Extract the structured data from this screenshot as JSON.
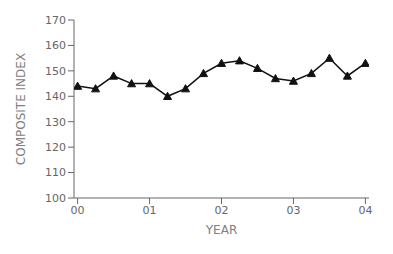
{
  "chart_data": {
    "type": "line",
    "x": [
      0.0,
      0.25,
      0.5,
      0.75,
      1.0,
      1.25,
      1.5,
      1.75,
      2.0,
      2.25,
      2.5,
      2.75,
      3.0,
      3.25,
      3.5,
      3.75,
      4.0
    ],
    "values": [
      144,
      143,
      148,
      145,
      145,
      140,
      143,
      149,
      153,
      154,
      151,
      147,
      146,
      149,
      155,
      148,
      153
    ],
    "xlim": [
      -0.05,
      4.05
    ],
    "ylim": [
      100,
      170
    ],
    "xticks": [
      {
        "value": 0,
        "label": "00"
      },
      {
        "value": 1.0,
        "label": "01"
      },
      {
        "value": 2.0,
        "label": "02"
      },
      {
        "value": 3.0,
        "label": "03"
      },
      {
        "value": 4.0,
        "label": "04"
      }
    ],
    "yticks": [
      100,
      110,
      120,
      130,
      140,
      150,
      160,
      170
    ],
    "xlabel": "YEAR",
    "ylabel": "COMPOSITE INDEX",
    "color": "#111111",
    "marker": "triangle",
    "grid": false
  }
}
